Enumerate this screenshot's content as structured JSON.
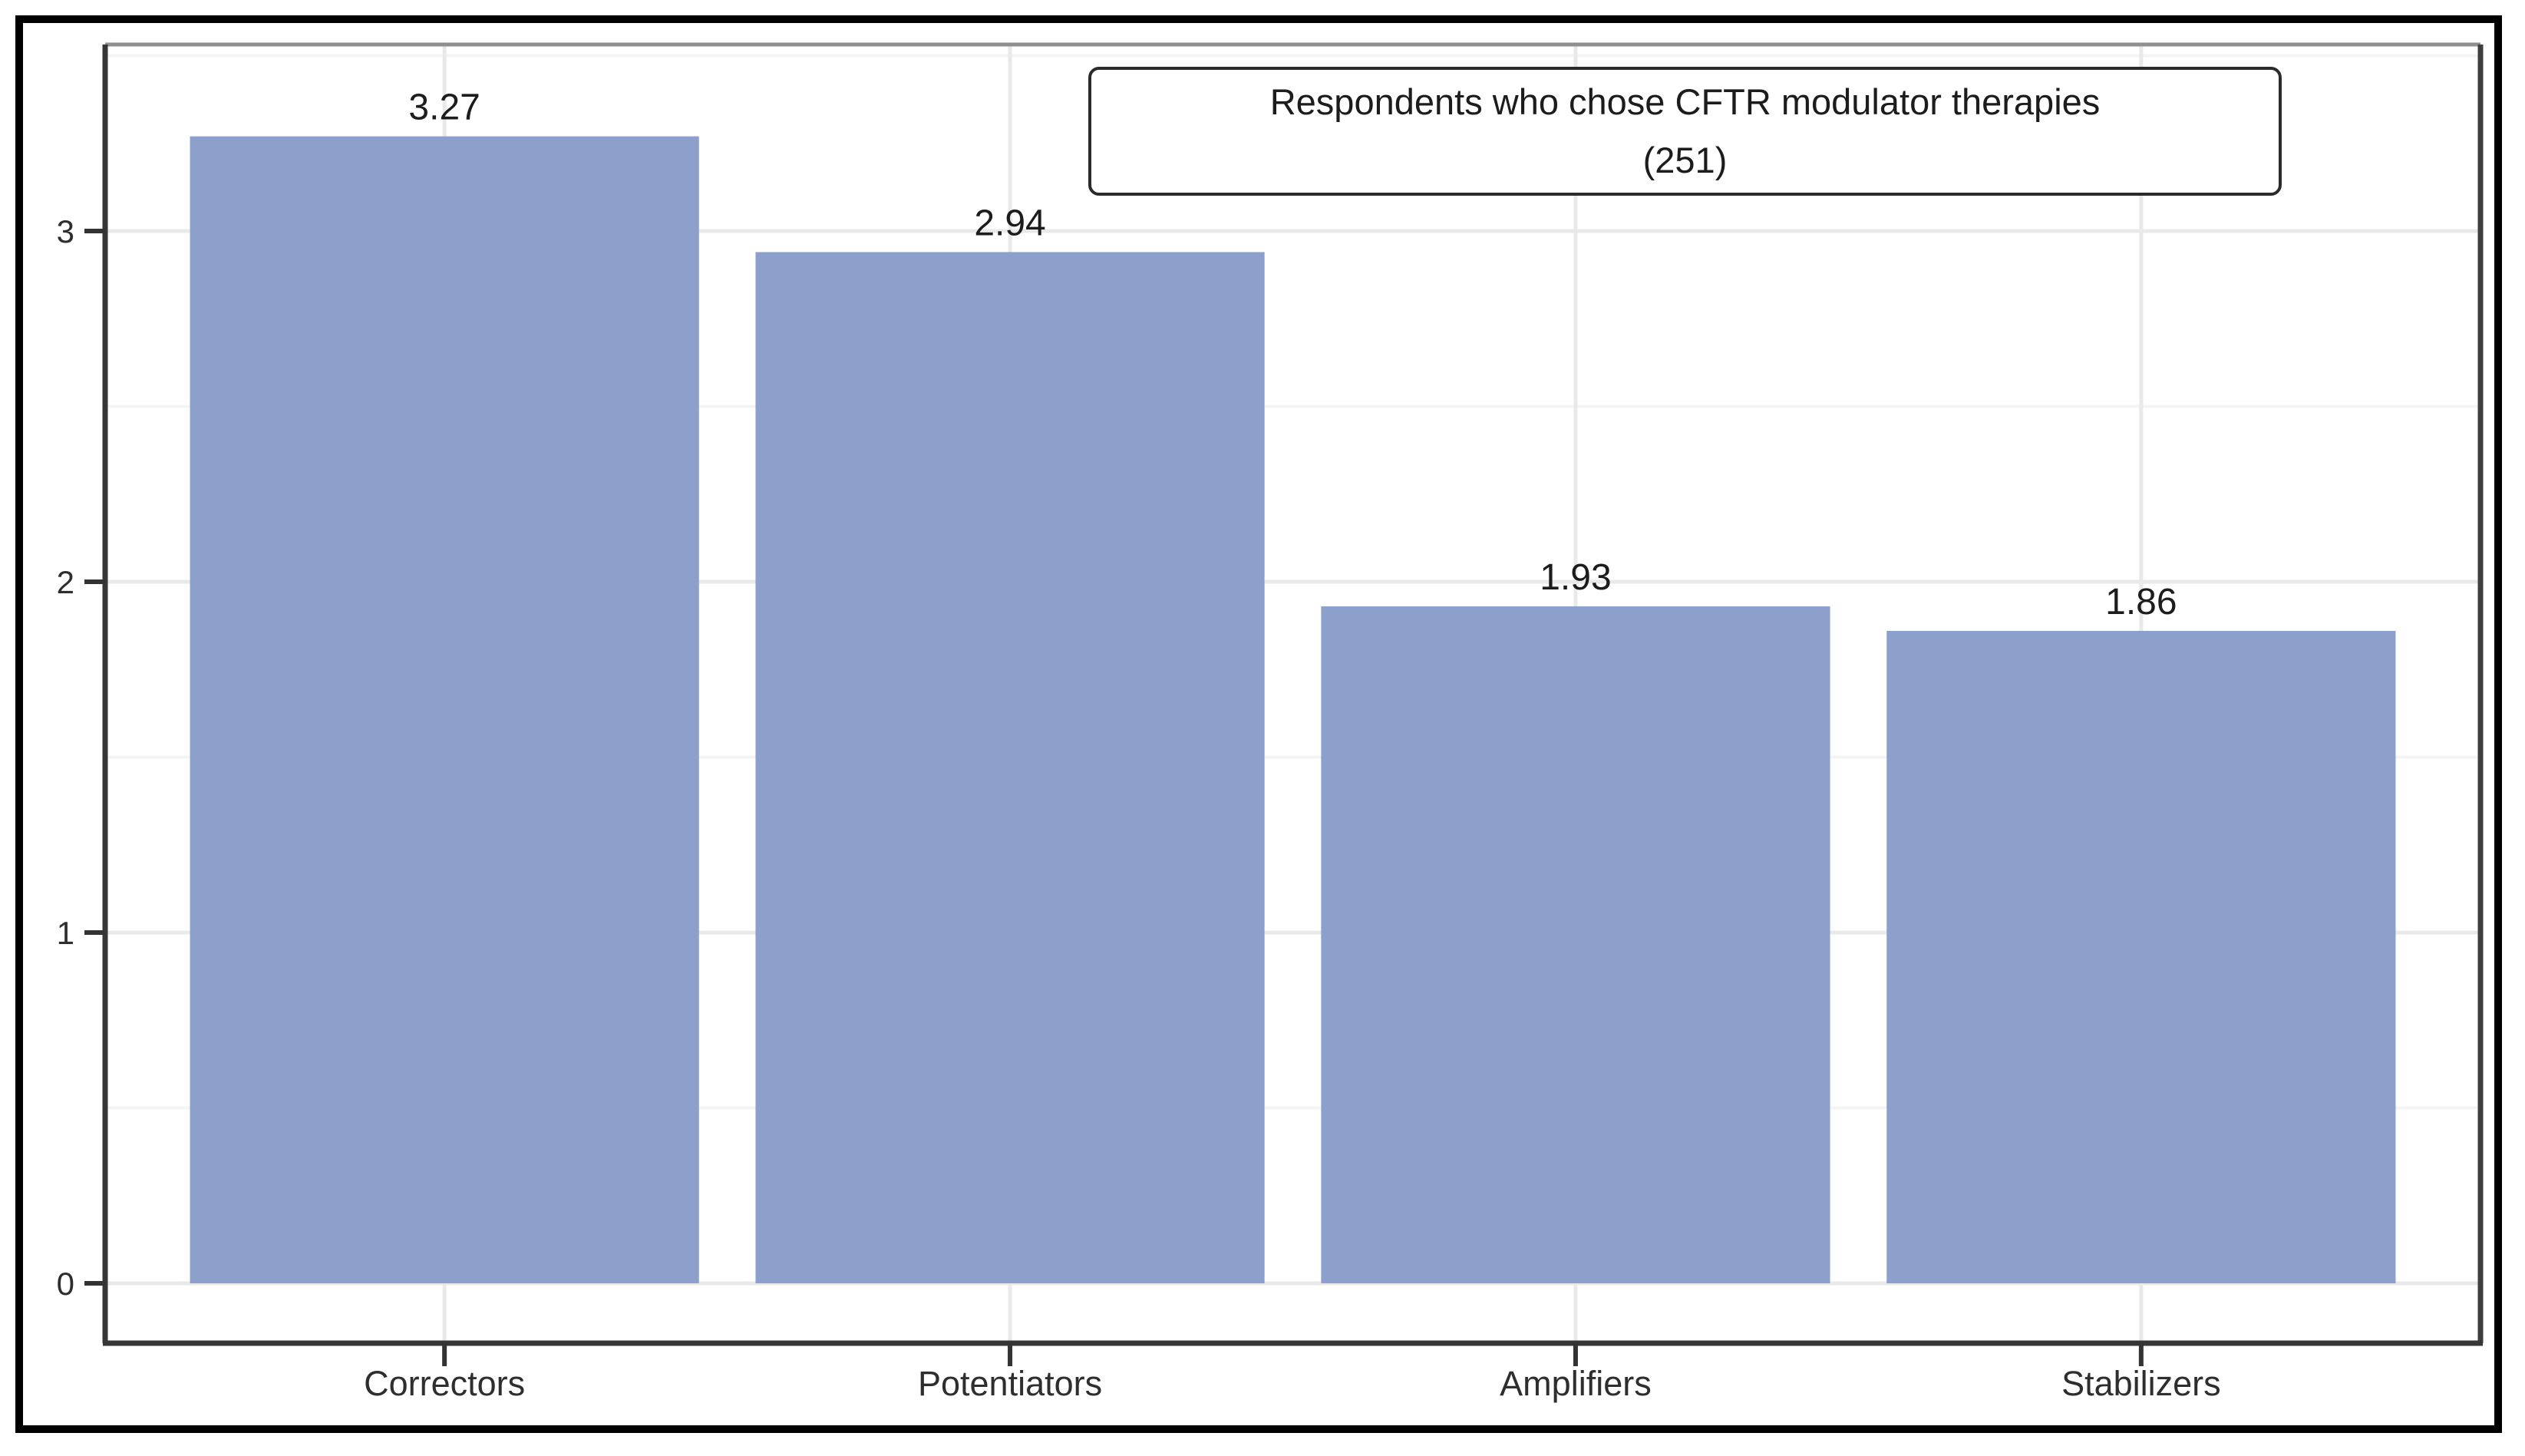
{
  "chart_data": {
    "type": "bar",
    "title": "Respondents who chose CFTR modulator therapies (251)",
    "title_lines": [
      "Respondents who chose CFTR modulator therapies",
      "(251)"
    ],
    "categories": [
      "Correctors",
      "Potentiators",
      "Amplifiers",
      "Stabilizers"
    ],
    "values": [
      3.27,
      2.94,
      1.93,
      1.86
    ],
    "value_labels": [
      "3.27",
      "2.94",
      "1.93",
      "1.86"
    ],
    "xlabel": "",
    "ylabel": "",
    "ylim": [
      -0.17,
      3.53
    ],
    "yticks": [
      0,
      1,
      2,
      3
    ],
    "ytick_labels": [
      "0",
      "1",
      "2",
      "3"
    ],
    "yticks_minor": [
      0.5,
      1.5,
      2.5,
      3.5
    ],
    "grid": "horizontal major+minor, vertical major at category centers",
    "legend_position": "none",
    "bar_width_fraction": 0.9
  },
  "colors": {
    "background": "#ffffff",
    "frame_border": "#000000",
    "bar_fill": "#8da0cb",
    "grid_major": "#e9e9e9",
    "grid_minor": "#f4f4f4",
    "panel_border_top": "#8f8f8f",
    "panel_border_side": "#3f3f3f",
    "axis_line": "#363636",
    "tick_mark": "#333333",
    "text": "#1c1c1c",
    "title_box_border": "#2b2b2b"
  }
}
